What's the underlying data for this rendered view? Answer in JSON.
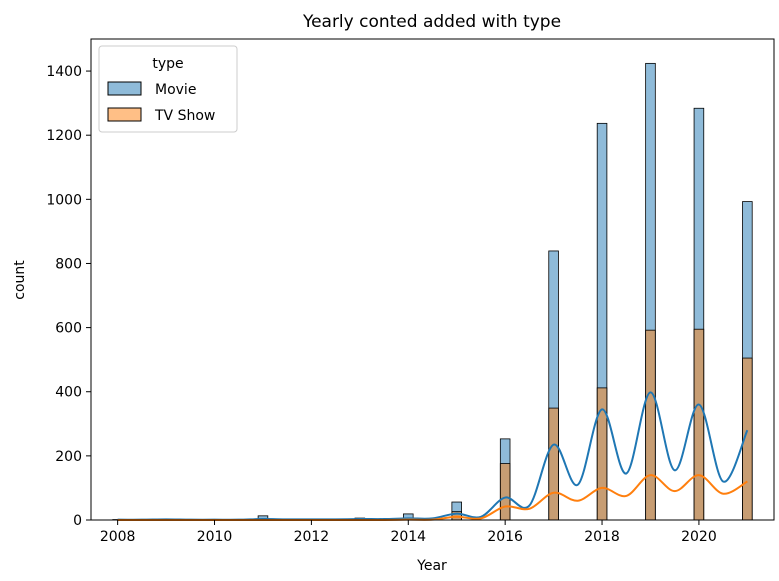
{
  "chart_data": {
    "type": "bar",
    "title": "Yearly conted added with type",
    "xlabel": "Year",
    "ylabel": "count",
    "xlim": [
      2007.45,
      2021.55
    ],
    "ylim": [
      0,
      1500
    ],
    "xticks": [
      2008,
      2010,
      2012,
      2014,
      2016,
      2018,
      2020
    ],
    "yticks": [
      0,
      200,
      400,
      600,
      800,
      1000,
      1200,
      1400
    ],
    "legend": {
      "title": "type",
      "placement": "top-left"
    },
    "x": [
      2008,
      2009,
      2010,
      2011,
      2012,
      2013,
      2014,
      2015,
      2016,
      2017,
      2018,
      2019,
      2020,
      2021
    ],
    "series": [
      {
        "name": "Movie",
        "color": "#1f77b4",
        "values": [
          1,
          2,
          1,
          13,
          3,
          6,
          19,
          56,
          253,
          839,
          1237,
          1424,
          1284,
          993
        ]
      },
      {
        "name": "TV Show",
        "color": "#ff7f0e",
        "values": [
          1,
          0,
          0,
          1,
          0,
          5,
          5,
          26,
          176,
          349,
          412,
          592,
          595,
          505
        ]
      }
    ],
    "kde": [
      {
        "series": "Movie",
        "color": "#1f77b4",
        "peaks": [
          1,
          2,
          1,
          3,
          2,
          3,
          5,
          20,
          70,
          235,
          345,
          398,
          360,
          280
        ],
        "troughs": [
          1,
          1,
          1,
          2,
          2,
          3,
          5,
          10,
          45,
          110,
          145,
          155,
          120
        ]
      },
      {
        "series": "TV Show",
        "color": "#ff7f0e",
        "peaks": [
          0,
          0,
          0,
          0,
          0,
          0,
          1,
          10,
          42,
          85,
          100,
          140,
          140,
          120
        ],
        "troughs": [
          0,
          0,
          0,
          0,
          0,
          0,
          1,
          5,
          35,
          60,
          75,
          90,
          82
        ]
      }
    ]
  }
}
